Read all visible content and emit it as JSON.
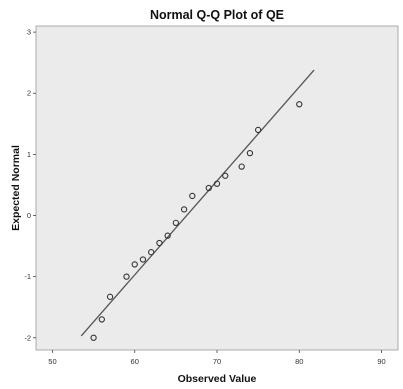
{
  "chart_data": {
    "type": "scatter",
    "title": "Normal Q-Q Plot of QE",
    "xlabel": "Observed Value",
    "ylabel": "Expected Normal",
    "xlim": [
      48,
      92
    ],
    "ylim": [
      -2.2,
      3.1
    ],
    "x_ticks": [
      50,
      60,
      70,
      80,
      90
    ],
    "y_ticks": [
      -2,
      -1,
      0,
      1,
      2,
      3
    ],
    "grid": false,
    "series": [
      {
        "marker": "open-circle",
        "points": [
          {
            "x": 55,
            "y": -2.0
          },
          {
            "x": 56,
            "y": -1.7
          },
          {
            "x": 57,
            "y": -1.33
          },
          {
            "x": 59,
            "y": -1.0
          },
          {
            "x": 60,
            "y": -0.8
          },
          {
            "x": 61,
            "y": -0.72
          },
          {
            "x": 62,
            "y": -0.6
          },
          {
            "x": 63,
            "y": -0.45
          },
          {
            "x": 64,
            "y": -0.33
          },
          {
            "x": 65,
            "y": -0.12
          },
          {
            "x": 66,
            "y": 0.1
          },
          {
            "x": 67,
            "y": 0.32
          },
          {
            "x": 69,
            "y": 0.45
          },
          {
            "x": 70,
            "y": 0.52
          },
          {
            "x": 71,
            "y": 0.65
          },
          {
            "x": 73,
            "y": 0.8
          },
          {
            "x": 74,
            "y": 1.02
          },
          {
            "x": 75,
            "y": 1.4
          },
          {
            "x": 80,
            "y": 1.82
          }
        ]
      }
    ],
    "reference_line": {
      "from": {
        "x": 53.5,
        "y": -1.97
      },
      "to": {
        "x": 81.8,
        "y": 2.38
      }
    },
    "plot_background": "#ebebeb",
    "marker_color": "#333333",
    "line_color": "#555555"
  }
}
